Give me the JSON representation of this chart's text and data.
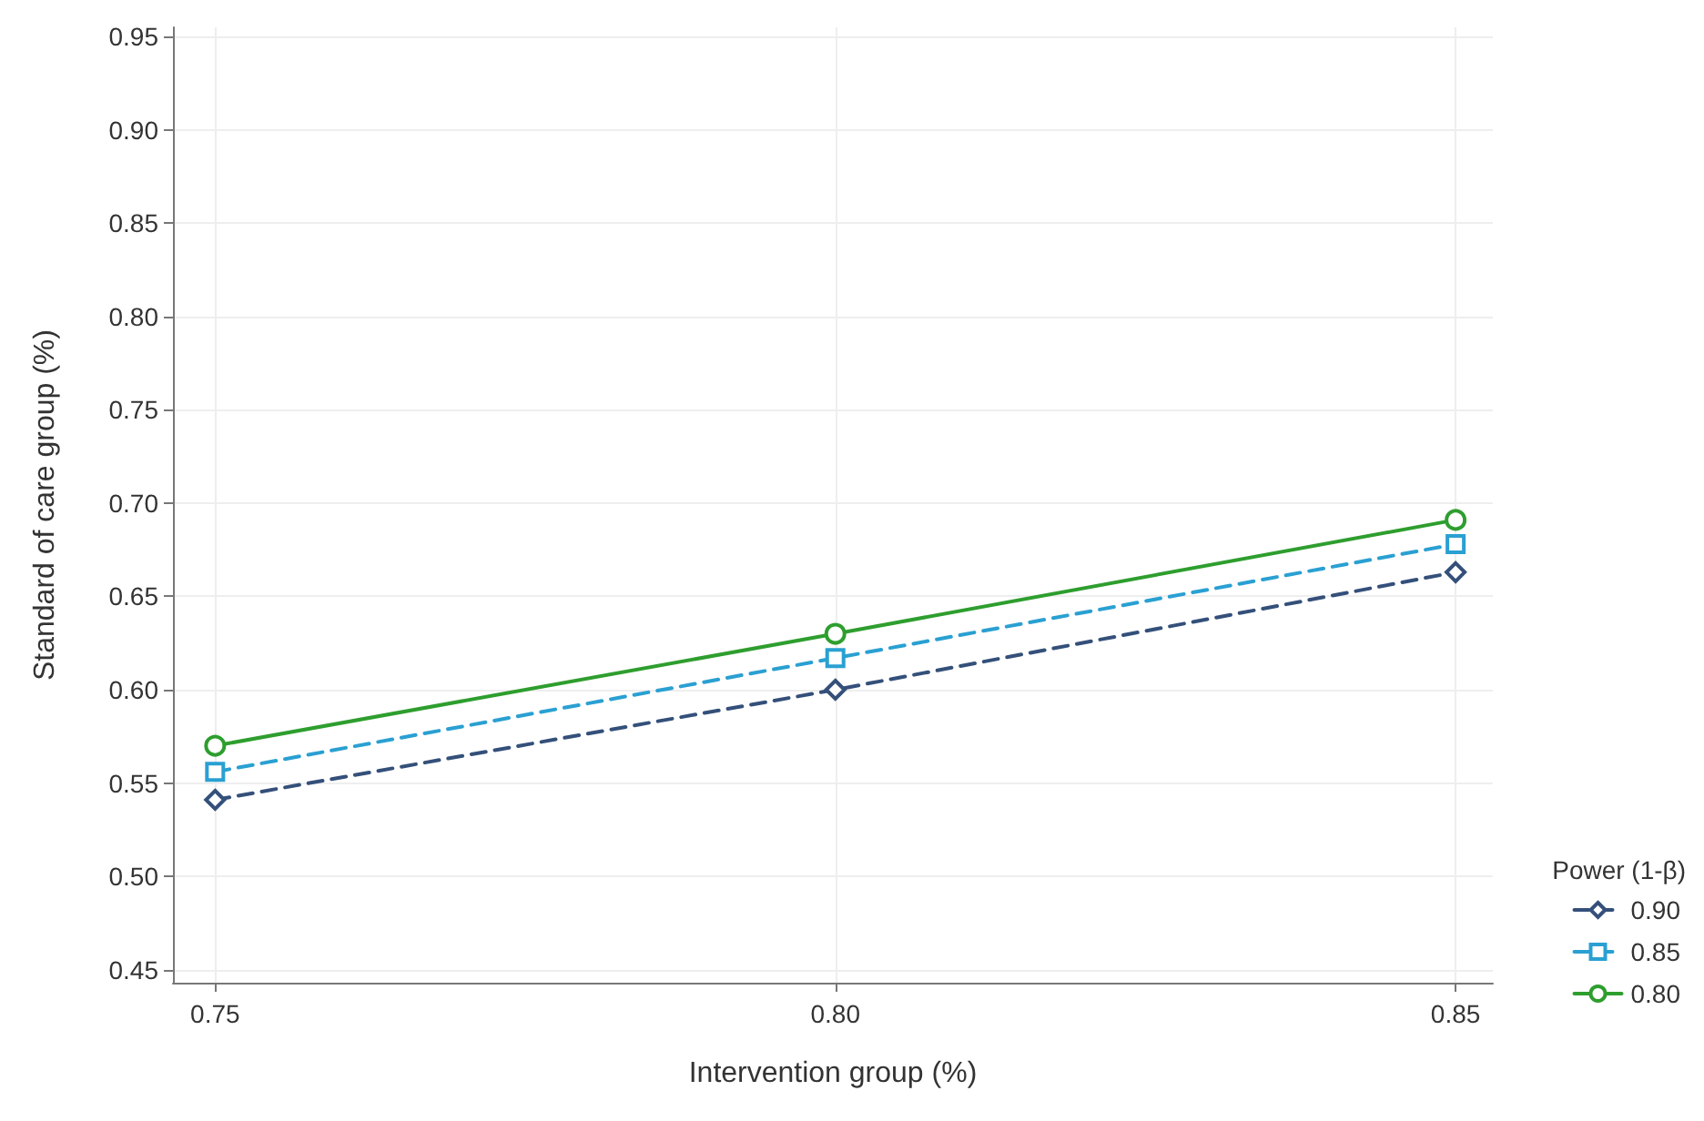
{
  "chart_data": {
    "type": "line",
    "xlabel": "Intervention group (%)",
    "ylabel": "Standard of care group (%)",
    "legend_title": "Power (1-β)",
    "x": [
      0.75,
      0.8,
      0.85
    ],
    "series": [
      {
        "name": "0.90",
        "color": "#34507a",
        "marker": "diamond",
        "line_style": "dashed",
        "values": [
          0.541,
          0.6,
          0.663
        ]
      },
      {
        "name": "0.85",
        "color": "#2aa0d2",
        "marker": "square",
        "line_style": "dashed",
        "values": [
          0.556,
          0.617,
          0.678
        ]
      },
      {
        "name": "0.80",
        "color": "#2e9e2e",
        "marker": "circle",
        "line_style": "solid",
        "values": [
          0.57,
          0.63,
          0.691
        ]
      }
    ],
    "xlim": [
      0.7466,
      0.853
    ],
    "xticks": [
      {
        "value": 0.75,
        "label": "0.75"
      },
      {
        "value": 0.8,
        "label": "0.80"
      },
      {
        "value": 0.85,
        "label": "0.85"
      }
    ],
    "ylim": [
      0.443,
      0.955
    ],
    "yticks": [
      {
        "value": 0.45,
        "label": "0.45"
      },
      {
        "value": 0.5,
        "label": "0.50"
      },
      {
        "value": 0.55,
        "label": "0.55"
      },
      {
        "value": 0.6,
        "label": "0.60"
      },
      {
        "value": 0.65,
        "label": "0.65"
      },
      {
        "value": 0.7,
        "label": "0.70"
      },
      {
        "value": 0.75,
        "label": "0.75"
      },
      {
        "value": 0.8,
        "label": "0.80"
      },
      {
        "value": 0.85,
        "label": "0.85"
      },
      {
        "value": 0.9,
        "label": "0.90"
      },
      {
        "value": 0.95,
        "label": "0.95"
      }
    ],
    "grid": true,
    "legend": "bottom right"
  }
}
